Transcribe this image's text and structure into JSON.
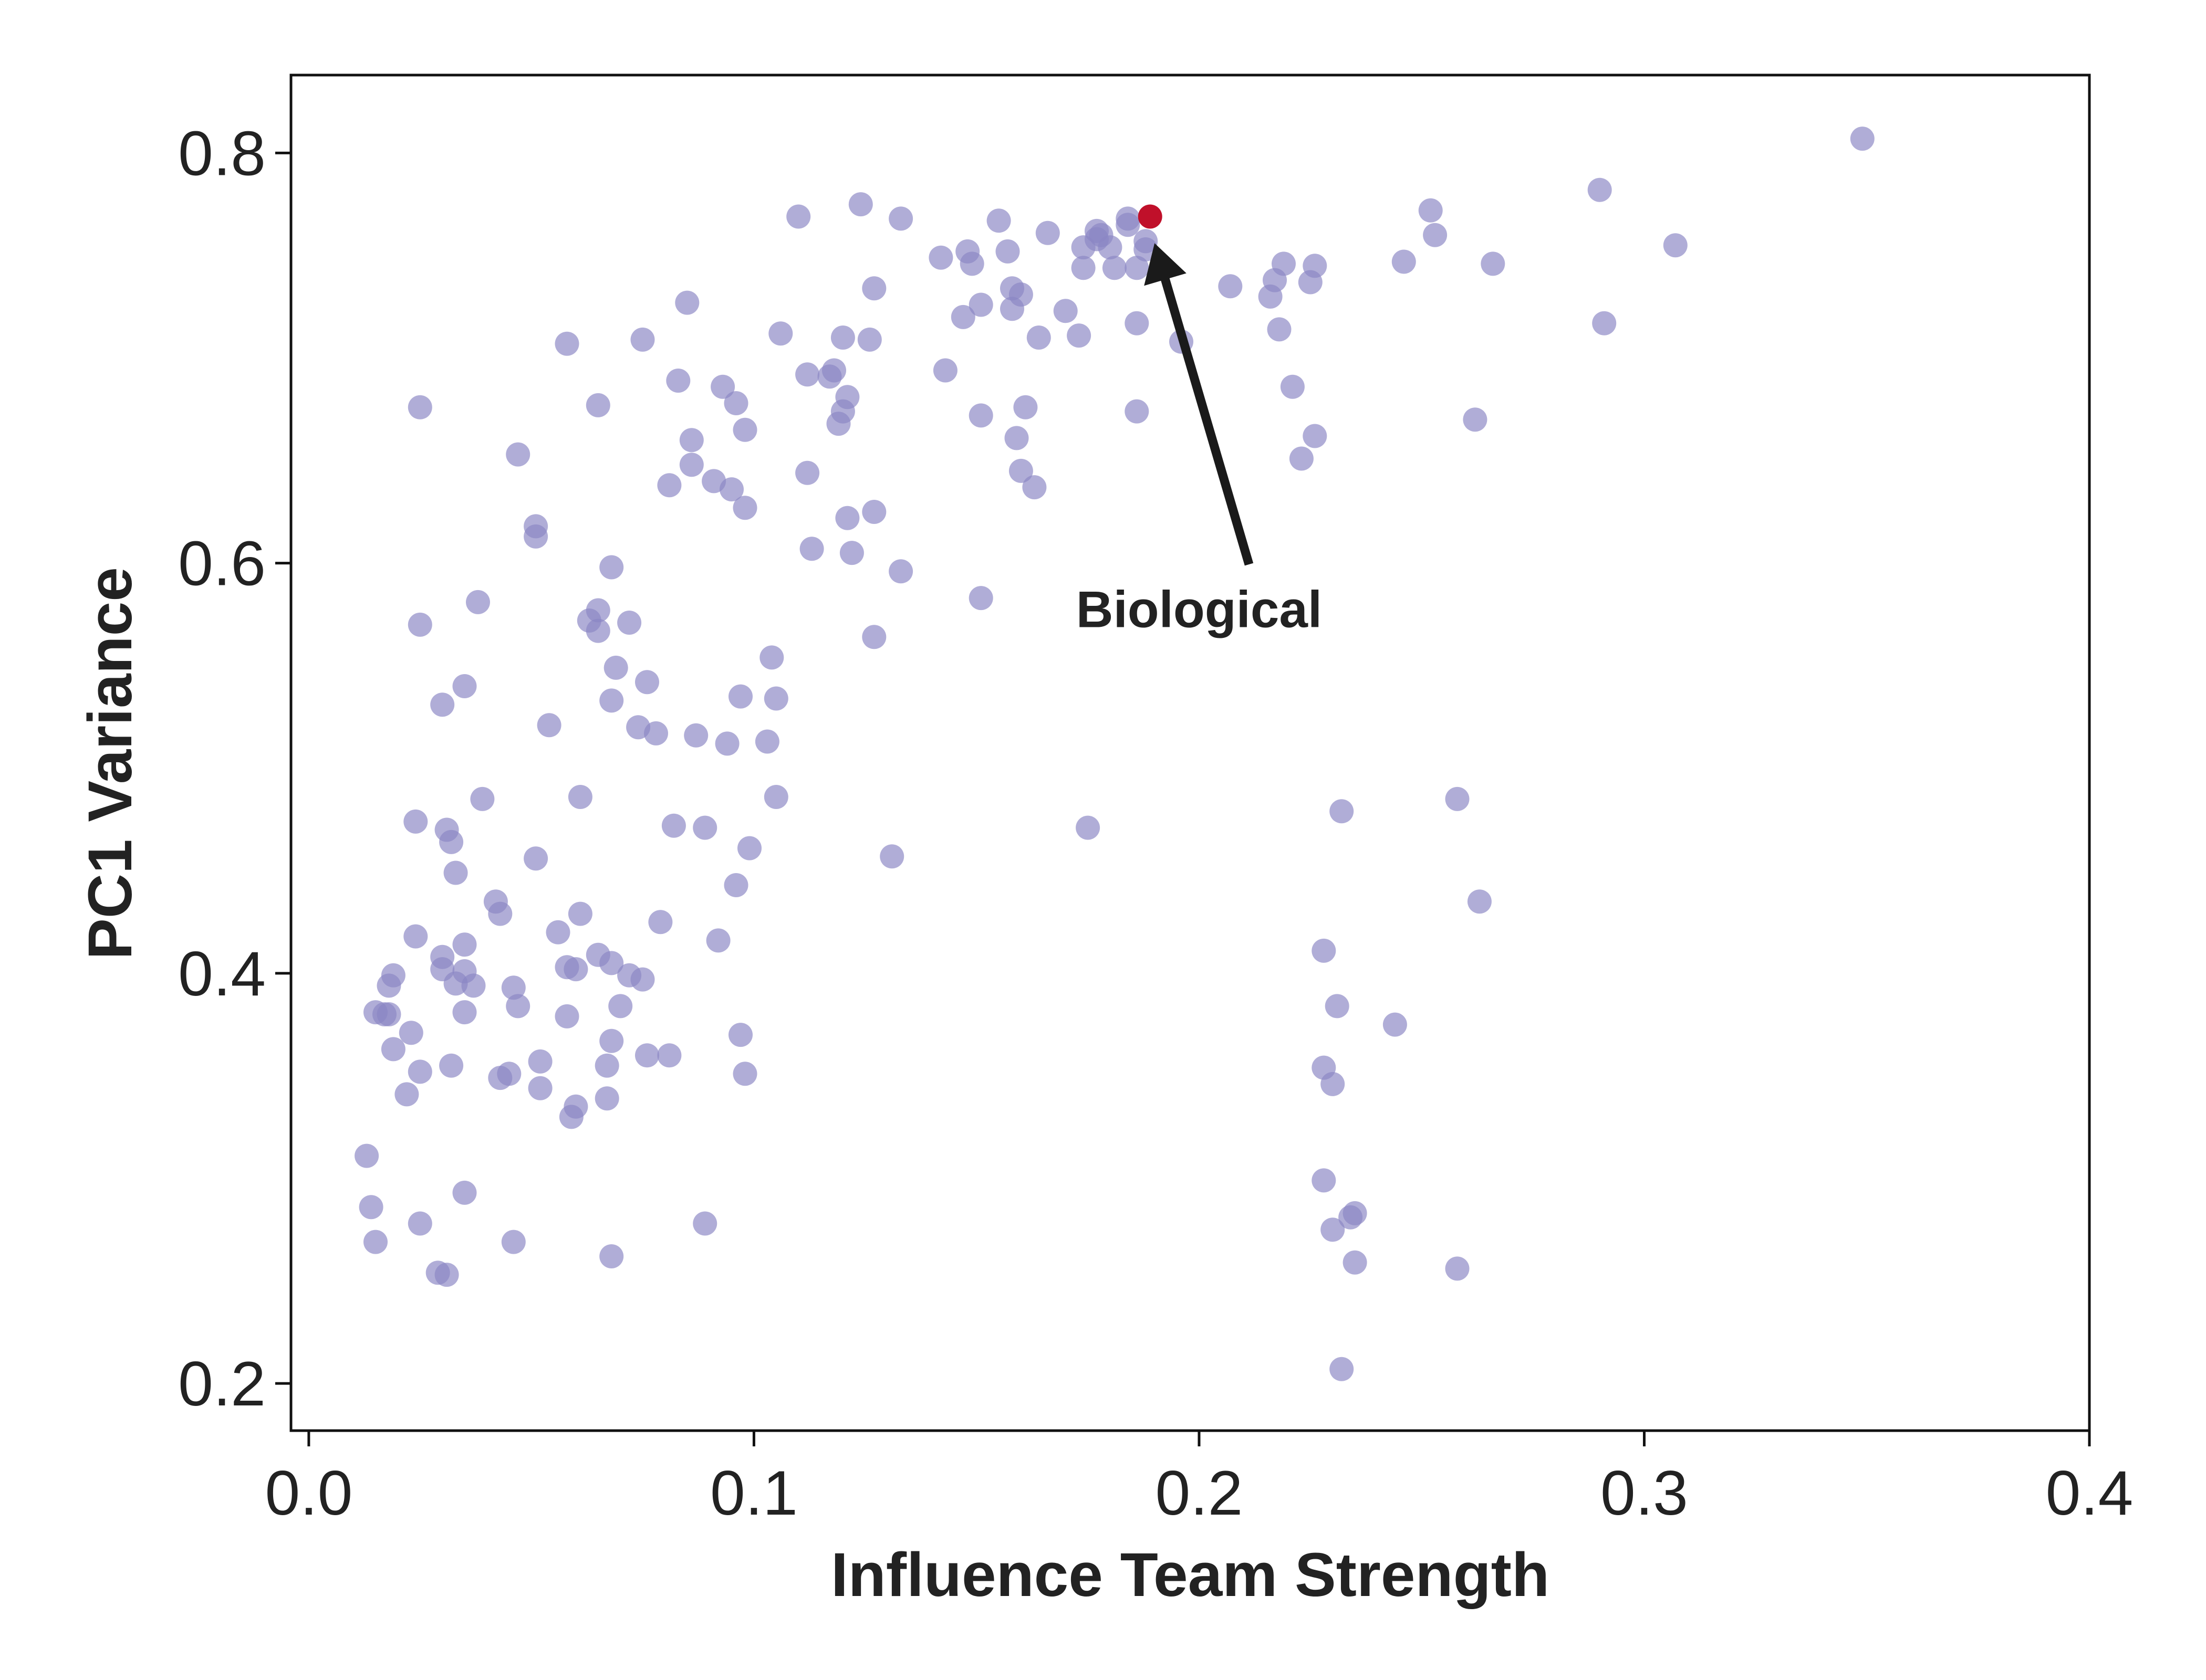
{
  "chart_data": {
    "type": "scatter",
    "title": "",
    "xlabel": "Influence Team Strength",
    "ylabel": "PC1 Variance",
    "xlim": [
      -0.004,
      0.4
    ],
    "ylim": [
      0.177,
      0.838
    ],
    "xticks": [
      0.0,
      0.1,
      0.2,
      0.3,
      0.4
    ],
    "xtick_labels": [
      "0.0",
      "0.1",
      "0.2",
      "0.3",
      "0.4"
    ],
    "yticks": [
      0.2,
      0.4,
      0.6,
      0.8
    ],
    "ytick_labels": [
      "0.2",
      "0.4",
      "0.6",
      "0.8"
    ],
    "grid": false,
    "legend": "none",
    "colors": {
      "points": "#8b86c4",
      "highlight": "#c0102a",
      "arrow": "#1a1a1a",
      "axes": "#111111"
    },
    "series": [
      {
        "points": [
          [
            0.013,
            0.311
          ],
          [
            0.014,
            0.286
          ],
          [
            0.015,
            0.269
          ],
          [
            0.015,
            0.381
          ],
          [
            0.017,
            0.38
          ],
          [
            0.018,
            0.394
          ],
          [
            0.018,
            0.38
          ],
          [
            0.019,
            0.363
          ],
          [
            0.019,
            0.399
          ],
          [
            0.022,
            0.341
          ],
          [
            0.023,
            0.371
          ],
          [
            0.024,
            0.474
          ],
          [
            0.024,
            0.418
          ],
          [
            0.025,
            0.352
          ],
          [
            0.025,
            0.278
          ],
          [
            0.025,
            0.57
          ],
          [
            0.025,
            0.676
          ],
          [
            0.029,
            0.254
          ],
          [
            0.03,
            0.402
          ],
          [
            0.03,
            0.408
          ],
          [
            0.03,
            0.531
          ],
          [
            0.031,
            0.47
          ],
          [
            0.031,
            0.253
          ],
          [
            0.032,
            0.464
          ],
          [
            0.032,
            0.355
          ],
          [
            0.033,
            0.449
          ],
          [
            0.033,
            0.395
          ],
          [
            0.035,
            0.381
          ],
          [
            0.035,
            0.293
          ],
          [
            0.035,
            0.54
          ],
          [
            0.035,
            0.414
          ],
          [
            0.035,
            0.401
          ],
          [
            0.037,
            0.394
          ],
          [
            0.038,
            0.581
          ],
          [
            0.039,
            0.485
          ],
          [
            0.042,
            0.435
          ],
          [
            0.043,
            0.429
          ],
          [
            0.043,
            0.349
          ],
          [
            0.045,
            0.351
          ],
          [
            0.046,
            0.269
          ],
          [
            0.046,
            0.393
          ],
          [
            0.047,
            0.384
          ],
          [
            0.047,
            0.653
          ],
          [
            0.051,
            0.456
          ],
          [
            0.051,
            0.618
          ],
          [
            0.051,
            0.613
          ],
          [
            0.052,
            0.344
          ],
          [
            0.052,
            0.357
          ],
          [
            0.054,
            0.521
          ],
          [
            0.056,
            0.42
          ],
          [
            0.058,
            0.403
          ],
          [
            0.058,
            0.707
          ],
          [
            0.058,
            0.379
          ],
          [
            0.059,
            0.33
          ],
          [
            0.06,
            0.335
          ],
          [
            0.06,
            0.402
          ],
          [
            0.061,
            0.429
          ],
          [
            0.061,
            0.486
          ],
          [
            0.063,
            0.572
          ],
          [
            0.065,
            0.409
          ],
          [
            0.065,
            0.677
          ],
          [
            0.065,
            0.577
          ],
          [
            0.065,
            0.567
          ],
          [
            0.067,
            0.339
          ],
          [
            0.067,
            0.355
          ],
          [
            0.068,
            0.598
          ],
          [
            0.068,
            0.533
          ],
          [
            0.068,
            0.405
          ],
          [
            0.068,
            0.367
          ],
          [
            0.068,
            0.262
          ],
          [
            0.069,
            0.549
          ],
          [
            0.07,
            0.384
          ],
          [
            0.072,
            0.571
          ],
          [
            0.072,
            0.399
          ],
          [
            0.074,
            0.52
          ],
          [
            0.075,
            0.709
          ],
          [
            0.075,
            0.397
          ],
          [
            0.076,
            0.542
          ],
          [
            0.076,
            0.36
          ],
          [
            0.078,
            0.517
          ],
          [
            0.079,
            0.425
          ],
          [
            0.081,
            0.638
          ],
          [
            0.081,
            0.36
          ],
          [
            0.082,
            0.472
          ],
          [
            0.083,
            0.689
          ],
          [
            0.085,
            0.727
          ],
          [
            0.086,
            0.648
          ],
          [
            0.086,
            0.66
          ],
          [
            0.087,
            0.516
          ],
          [
            0.089,
            0.471
          ],
          [
            0.089,
            0.278
          ],
          [
            0.091,
            0.64
          ],
          [
            0.092,
            0.416
          ],
          [
            0.093,
            0.686
          ],
          [
            0.094,
            0.512
          ],
          [
            0.095,
            0.636
          ],
          [
            0.096,
            0.443
          ],
          [
            0.096,
            0.678
          ],
          [
            0.097,
            0.535
          ],
          [
            0.097,
            0.37
          ],
          [
            0.098,
            0.627
          ],
          [
            0.098,
            0.665
          ],
          [
            0.098,
            0.351
          ],
          [
            0.099,
            0.461
          ],
          [
            0.103,
            0.513
          ],
          [
            0.104,
            0.554
          ],
          [
            0.105,
            0.534
          ],
          [
            0.105,
            0.486
          ],
          [
            0.106,
            0.712
          ],
          [
            0.11,
            0.769
          ],
          [
            0.112,
            0.644
          ],
          [
            0.112,
            0.692
          ],
          [
            0.113,
            0.607
          ],
          [
            0.117,
            0.691
          ],
          [
            0.118,
            0.694
          ],
          [
            0.119,
            0.668
          ],
          [
            0.12,
            0.674
          ],
          [
            0.12,
            0.71
          ],
          [
            0.121,
            0.622
          ],
          [
            0.121,
            0.681
          ],
          [
            0.122,
            0.605
          ],
          [
            0.124,
            0.775
          ],
          [
            0.126,
            0.709
          ],
          [
            0.127,
            0.734
          ],
          [
            0.127,
            0.625
          ],
          [
            0.127,
            0.564
          ],
          [
            0.131,
            0.457
          ],
          [
            0.133,
            0.768
          ],
          [
            0.133,
            0.596
          ],
          [
            0.142,
            0.749
          ],
          [
            0.143,
            0.694
          ],
          [
            0.147,
            0.72
          ],
          [
            0.148,
            0.752
          ],
          [
            0.149,
            0.746
          ],
          [
            0.151,
            0.726
          ],
          [
            0.151,
            0.672
          ],
          [
            0.151,
            0.583
          ],
          [
            0.155,
            0.767
          ],
          [
            0.157,
            0.752
          ],
          [
            0.158,
            0.724
          ],
          [
            0.158,
            0.734
          ],
          [
            0.159,
            0.661
          ],
          [
            0.16,
            0.731
          ],
          [
            0.16,
            0.645
          ],
          [
            0.161,
            0.676
          ],
          [
            0.163,
            0.637
          ],
          [
            0.164,
            0.71
          ],
          [
            0.166,
            0.761
          ],
          [
            0.17,
            0.723
          ],
          [
            0.173,
            0.711
          ],
          [
            0.174,
            0.754
          ],
          [
            0.174,
            0.744
          ],
          [
            0.175,
            0.471
          ],
          [
            0.177,
            0.762
          ],
          [
            0.177,
            0.758
          ],
          [
            0.178,
            0.76
          ],
          [
            0.18,
            0.754
          ],
          [
            0.181,
            0.744
          ],
          [
            0.184,
            0.768
          ],
          [
            0.184,
            0.765
          ],
          [
            0.186,
            0.744
          ],
          [
            0.186,
            0.717
          ],
          [
            0.186,
            0.674
          ],
          [
            0.188,
            0.753
          ],
          [
            0.188,
            0.757
          ],
          [
            0.196,
            0.708
          ],
          [
            0.207,
            0.735
          ],
          [
            0.216,
            0.73
          ],
          [
            0.217,
            0.738
          ],
          [
            0.218,
            0.714
          ],
          [
            0.219,
            0.746
          ],
          [
            0.221,
            0.686
          ],
          [
            0.223,
            0.651
          ],
          [
            0.225,
            0.737
          ],
          [
            0.226,
            0.745
          ],
          [
            0.226,
            0.662
          ],
          [
            0.228,
            0.411
          ],
          [
            0.228,
            0.354
          ],
          [
            0.228,
            0.299
          ],
          [
            0.23,
            0.346
          ],
          [
            0.23,
            0.275
          ],
          [
            0.231,
            0.384
          ],
          [
            0.232,
            0.479
          ],
          [
            0.232,
            0.207
          ],
          [
            0.234,
            0.281
          ],
          [
            0.235,
            0.259
          ],
          [
            0.235,
            0.283
          ],
          [
            0.244,
            0.375
          ],
          [
            0.246,
            0.747
          ],
          [
            0.252,
            0.772
          ],
          [
            0.253,
            0.76
          ],
          [
            0.258,
            0.485
          ],
          [
            0.258,
            0.256
          ],
          [
            0.262,
            0.67
          ],
          [
            0.263,
            0.435
          ],
          [
            0.266,
            0.746
          ],
          [
            0.29,
            0.782
          ],
          [
            0.291,
            0.717
          ],
          [
            0.307,
            0.755
          ],
          [
            0.349,
            0.807
          ]
        ]
      }
    ],
    "highlight": {
      "x": 0.189,
      "y": 0.769
    },
    "annotations": [
      {
        "text": "Biological",
        "x": 0.2,
        "y": 0.577,
        "arrow_to": {
          "x": 0.19,
          "y": 0.756
        }
      }
    ]
  }
}
